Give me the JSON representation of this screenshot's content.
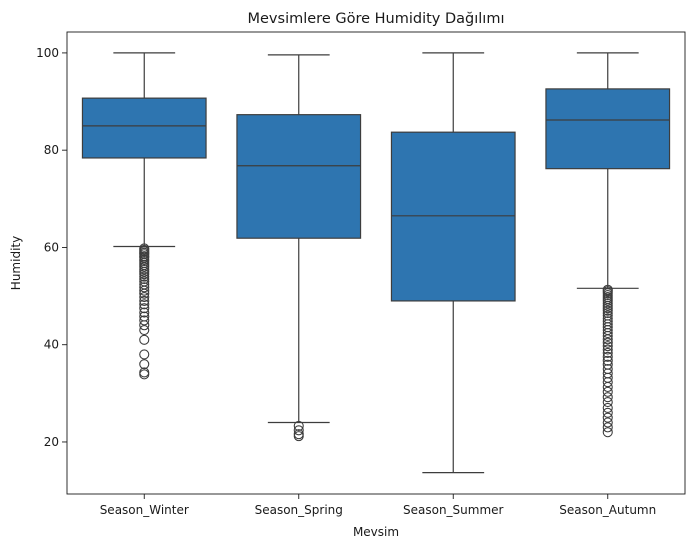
{
  "chart_data": {
    "type": "box",
    "title": "Mevsimlere Göre Humidity Dağılımı",
    "xlabel": "Mevsim",
    "ylabel": "Humidity",
    "ylim": [
      9.3,
      104.3
    ],
    "yticks": [
      20,
      40,
      60,
      80,
      100
    ],
    "grid": false,
    "color": "#2e75b0",
    "line_color": "#3d3d3d",
    "categories": [
      "Season_Winter",
      "Season_Spring",
      "Season_Summer",
      "Season_Autumn"
    ],
    "boxes": [
      {
        "category": "Season_Winter",
        "whisker_low": 60.2,
        "q1": 78.4,
        "median": 85.0,
        "q3": 90.7,
        "whisker_high": 100.0,
        "outliers": [
          59.8,
          59.5,
          59.2,
          58.9,
          58.6,
          58.2,
          57.9,
          57.5,
          57.2,
          56.8,
          56.4,
          56.0,
          55.5,
          55.0,
          54.5,
          54.0,
          53.5,
          53.0,
          52.4,
          51.8,
          51.1,
          50.5,
          49.8,
          49.0,
          48.3,
          47.5,
          46.6,
          45.8,
          45.0,
          44.0,
          43.0,
          41.0,
          38.0,
          36.0,
          34.3,
          33.9
        ]
      },
      {
        "category": "Season_Spring",
        "whisker_low": 24.0,
        "q1": 61.9,
        "median": 76.8,
        "q3": 87.3,
        "whisker_high": 99.6,
        "outliers": [
          23.3,
          22.4,
          21.6,
          21.2
        ]
      },
      {
        "category": "Season_Summer",
        "whisker_low": 13.7,
        "q1": 49.0,
        "median": 66.5,
        "q3": 83.7,
        "whisker_high": 100.0,
        "outliers": []
      },
      {
        "category": "Season_Autumn",
        "whisker_low": 51.6,
        "q1": 76.2,
        "median": 86.2,
        "q3": 92.6,
        "whisker_high": 100.0,
        "outliers": [
          51.3,
          51.0,
          50.6,
          50.2,
          49.8,
          49.4,
          49.0,
          48.5,
          48.0,
          47.5,
          47.0,
          46.5,
          46.0,
          45.4,
          44.8,
          44.2,
          43.6,
          43.0,
          42.4,
          41.8,
          41.1,
          40.4,
          39.7,
          39.0,
          38.3,
          37.5,
          36.7,
          35.9,
          35.0,
          34.1,
          33.2,
          32.3,
          31.3,
          30.3,
          29.2,
          28.2,
          27.0,
          26.0,
          25.0,
          24.0,
          23.0,
          22.0
        ]
      }
    ]
  }
}
